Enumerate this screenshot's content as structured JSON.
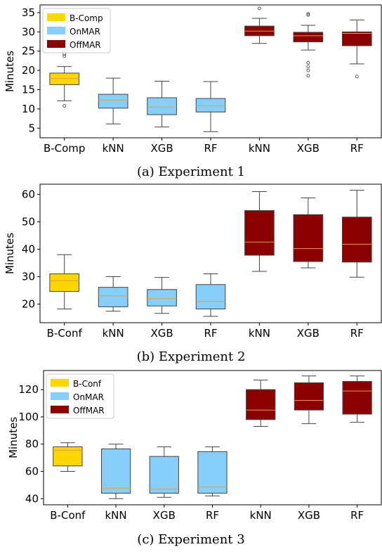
{
  "colors": {
    "bcomp": "#FFD700",
    "onmar": "#87CEFA",
    "offmar": "#8B0000",
    "median": "#E0A040"
  },
  "chart_data": [
    {
      "type": "boxplot",
      "caption": "(a) Experiment 1",
      "ylabel": "Minutes",
      "ylim": [
        2.5,
        37
      ],
      "yticks": [
        5,
        10,
        15,
        20,
        25,
        30,
        35
      ],
      "categories": [
        "B-Comp",
        "kNN",
        "XGB",
        "RF",
        "kNN",
        "XGB",
        "RF"
      ],
      "legend": {
        "placement": "top-left",
        "entries": [
          "B-Comp",
          "OnMAR",
          "OffMAR"
        ]
      },
      "boxes": [
        {
          "group": "bcomp",
          "whislo": 12.1,
          "q1": 16.3,
          "med": 17.9,
          "q3": 19.3,
          "whishi": 21.0,
          "fliers": [
            10.8,
            23.7,
            24.3,
            25.0
          ]
        },
        {
          "group": "onmar",
          "whislo": 6.1,
          "q1": 10.2,
          "med": 12.3,
          "q3": 13.8,
          "whishi": 18.0,
          "fliers": []
        },
        {
          "group": "onmar",
          "whislo": 5.3,
          "q1": 8.5,
          "med": 10.5,
          "q3": 12.9,
          "whishi": 17.2,
          "fliers": []
        },
        {
          "group": "onmar",
          "whislo": 4.1,
          "q1": 9.2,
          "med": 10.8,
          "q3": 12.7,
          "whishi": 17.1,
          "fliers": []
        },
        {
          "group": "offmar",
          "whislo": 27.0,
          "q1": 29.0,
          "med": 30.2,
          "q3": 31.5,
          "whishi": 33.5,
          "fliers": [
            36.1
          ]
        },
        {
          "group": "offmar",
          "whislo": 25.3,
          "q1": 27.4,
          "med": 29.0,
          "q3": 29.9,
          "whishi": 31.7,
          "fliers": [
            34.7,
            34.4,
            22.0,
            21.0,
            20.0,
            18.6
          ]
        },
        {
          "group": "offmar",
          "whislo": 21.7,
          "q1": 26.4,
          "med": 29.6,
          "q3": 30.0,
          "whishi": 33.1,
          "fliers": [
            18.4
          ]
        }
      ]
    },
    {
      "type": "boxplot",
      "caption": "(b) Experiment 2",
      "ylabel": "Minutes",
      "ylim": [
        13.2,
        63.7
      ],
      "yticks": [
        20,
        30,
        40,
        50,
        60
      ],
      "categories": [
        "B-Conf",
        "kNN",
        "XGB",
        "RF",
        "kNN",
        "XGB",
        "RF"
      ],
      "legend": null,
      "boxes": [
        {
          "group": "bcomp",
          "whislo": 18.2,
          "q1": 24.6,
          "med": 28.5,
          "q3": 31.0,
          "whishi": 38.0,
          "fliers": []
        },
        {
          "group": "onmar",
          "whislo": 17.4,
          "q1": 19.0,
          "med": 23.0,
          "q3": 26.1,
          "whishi": 30.0,
          "fliers": []
        },
        {
          "group": "onmar",
          "whislo": 16.6,
          "q1": 19.3,
          "med": 22.0,
          "q3": 25.3,
          "whishi": 29.7,
          "fliers": []
        },
        {
          "group": "onmar",
          "whislo": 15.5,
          "q1": 18.2,
          "med": 20.9,
          "q3": 27.1,
          "whishi": 31.0,
          "fliers": []
        },
        {
          "group": "offmar",
          "whislo": 31.9,
          "q1": 37.8,
          "med": 42.6,
          "q3": 54.1,
          "whishi": 61.0,
          "fliers": []
        },
        {
          "group": "offmar",
          "whislo": 33.2,
          "q1": 35.5,
          "med": 40.2,
          "q3": 52.6,
          "whishi": 58.7,
          "fliers": []
        },
        {
          "group": "offmar",
          "whislo": 29.8,
          "q1": 35.3,
          "med": 41.8,
          "q3": 51.7,
          "whishi": 61.5,
          "fliers": []
        }
      ]
    },
    {
      "type": "boxplot",
      "caption": "(c) Experiment 3",
      "ylabel": "Minutes",
      "ylim": [
        35.5,
        134
      ],
      "yticks": [
        40,
        60,
        80,
        100,
        120
      ],
      "categories": [
        "B-Conf",
        "kNN",
        "XGB",
        "RF",
        "kNN",
        "XGB",
        "RF"
      ],
      "legend": {
        "placement": "top-left",
        "entries": [
          "B-Conf",
          "OnMAR",
          "OffMAR"
        ]
      },
      "boxes": [
        {
          "group": "bcomp",
          "whislo": 60.0,
          "q1": 64.0,
          "med": 75.5,
          "q3": 78.0,
          "whishi": 81.0,
          "fliers": []
        },
        {
          "group": "onmar",
          "whislo": 40.0,
          "q1": 44.0,
          "med": 47.5,
          "q3": 76.5,
          "whishi": 80.0,
          "fliers": []
        },
        {
          "group": "onmar",
          "whislo": 41.0,
          "q1": 44.0,
          "med": 47.0,
          "q3": 71.0,
          "whishi": 78.0,
          "fliers": []
        },
        {
          "group": "onmar",
          "whislo": 42.0,
          "q1": 44.0,
          "med": 48.5,
          "q3": 74.5,
          "whishi": 78.0,
          "fliers": []
        },
        {
          "group": "offmar",
          "whislo": 93.0,
          "q1": 98.0,
          "med": 105.0,
          "q3": 120.0,
          "whishi": 127.0,
          "fliers": []
        },
        {
          "group": "offmar",
          "whislo": 95.0,
          "q1": 105.0,
          "med": 112.0,
          "q3": 125.0,
          "whishi": 130.0,
          "fliers": []
        },
        {
          "group": "offmar",
          "whislo": 96.0,
          "q1": 102.0,
          "med": 119.0,
          "q3": 126.0,
          "whishi": 130.0,
          "fliers": []
        }
      ]
    }
  ]
}
